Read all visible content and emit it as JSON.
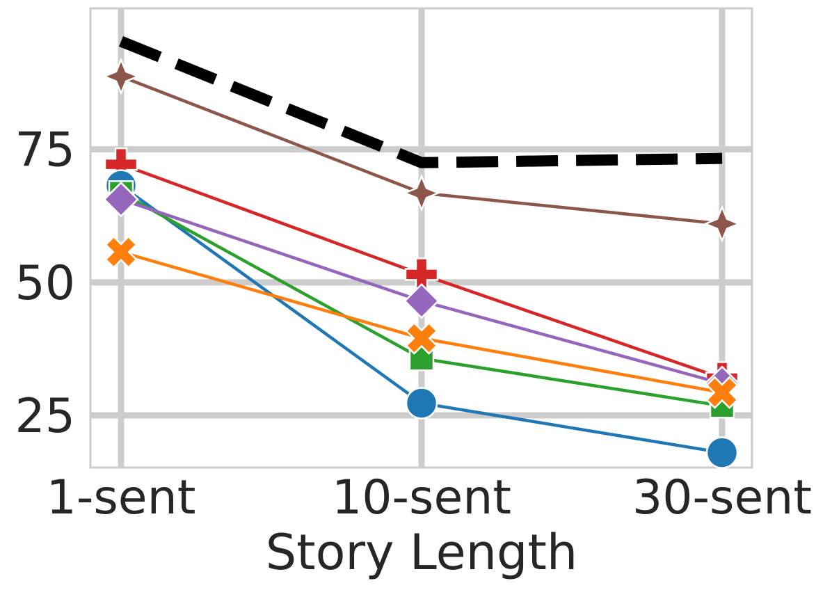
{
  "chart_data": {
    "type": "line",
    "title": "",
    "xlabel": "Story Length",
    "ylabel": "",
    "categories": [
      "1-sent",
      "10-sent",
      "30-sent"
    ],
    "ylim": [
      15.2,
      101.5
    ],
    "yticks": [
      25,
      50,
      75
    ],
    "grid": true,
    "legend": "none",
    "series": [
      {
        "color": "#000000",
        "style": "dashed",
        "marker": "none",
        "values": [
          95.3,
          72.5,
          73.3
        ]
      },
      {
        "color": "#8c564b",
        "marker": "star4",
        "values": [
          88.7,
          66.8,
          61.0
        ]
      },
      {
        "color": "#d62728",
        "marker": "plus",
        "values": [
          72.2,
          51.5,
          32.0
        ]
      },
      {
        "color": "#1f77b4",
        "marker": "circle",
        "values": [
          68.2,
          27.3,
          18.0
        ]
      },
      {
        "color": "#2ca02c",
        "marker": "square",
        "values": [
          66.8,
          35.7,
          26.8
        ]
      },
      {
        "color": "#9467bd",
        "marker": "diamond",
        "values": [
          65.6,
          46.5,
          31.0
        ]
      },
      {
        "color": "#ff7f0e",
        "marker": "x",
        "values": [
          55.7,
          39.5,
          29.3
        ]
      }
    ]
  }
}
